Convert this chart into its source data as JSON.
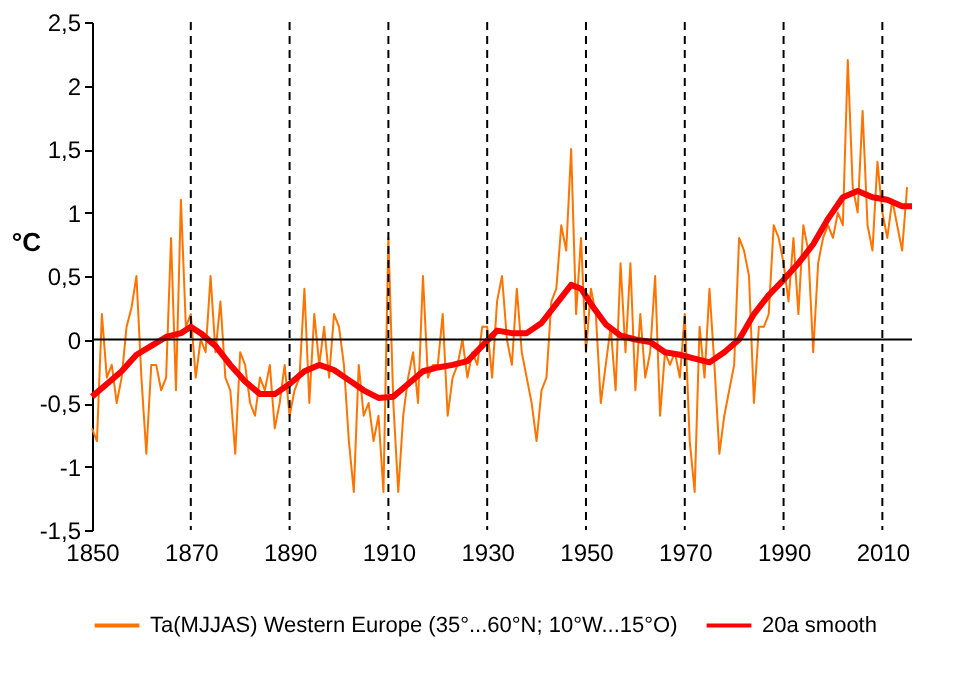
{
  "chart_data": {
    "type": "line",
    "ylabel": "°C",
    "xlim": [
      1850,
      2016
    ],
    "xticks": [
      1850,
      1870,
      1890,
      1910,
      1930,
      1950,
      1970,
      1990,
      2010
    ],
    "ylim": [
      -1.5,
      2.5
    ],
    "yticks": [
      {
        "value": -1.5,
        "label": "-1,5"
      },
      -1,
      {
        "value": -0.5,
        "label": "-0,5"
      },
      0,
      {
        "value": 0.5,
        "label": "0,5"
      },
      1,
      {
        "value": 1.5,
        "label": "1,5"
      },
      2,
      {
        "value": 2.5,
        "label": "2,5"
      }
    ],
    "grid": false,
    "legend": "bottom",
    "marker": "none",
    "series": [
      {
        "name": "Ta(MJJAS) Western Europe (35°...60°N; 10°W...15°O)",
        "color": "#ff7400",
        "x": [
          1850,
          1851,
          1852,
          1853,
          1854,
          1855,
          1856,
          1857,
          1858,
          1859,
          1860,
          1861,
          1862,
          1863,
          1864,
          1865,
          1866,
          1867,
          1868,
          1869,
          1870,
          1871,
          1872,
          1873,
          1874,
          1875,
          1876,
          1877,
          1878,
          1879,
          1880,
          1881,
          1882,
          1883,
          1884,
          1885,
          1886,
          1887,
          1888,
          1889,
          1890,
          1891,
          1892,
          1893,
          1894,
          1895,
          1896,
          1897,
          1898,
          1899,
          1900,
          1901,
          1902,
          1903,
          1904,
          1905,
          1906,
          1907,
          1908,
          1909,
          1910,
          1911,
          1912,
          1913,
          1914,
          1915,
          1916,
          1917,
          1918,
          1919,
          1920,
          1921,
          1922,
          1923,
          1924,
          1925,
          1926,
          1927,
          1928,
          1929,
          1930,
          1931,
          1932,
          1933,
          1934,
          1935,
          1936,
          1937,
          1938,
          1939,
          1940,
          1941,
          1942,
          1943,
          1944,
          1945,
          1946,
          1947,
          1948,
          1949,
          1950,
          1951,
          1952,
          1953,
          1954,
          1955,
          1956,
          1957,
          1958,
          1959,
          1960,
          1961,
          1962,
          1963,
          1964,
          1965,
          1966,
          1967,
          1968,
          1969,
          1970,
          1971,
          1972,
          1973,
          1974,
          1975,
          1976,
          1977,
          1978,
          1979,
          1980,
          1981,
          1982,
          1983,
          1984,
          1985,
          1986,
          1987,
          1988,
          1989,
          1990,
          1991,
          1992,
          1993,
          1994,
          1995,
          1996,
          1997,
          1998,
          1999,
          2000,
          2001,
          2002,
          2003,
          2004,
          2005,
          2006,
          2007,
          2008,
          2009,
          2010,
          2011,
          2012,
          2013,
          2014,
          2015
        ],
        "values": [
          -0.7,
          -0.8,
          0.2,
          -0.3,
          -0.2,
          -0.5,
          -0.3,
          0.1,
          0.25,
          0.5,
          -0.3,
          -0.9,
          -0.2,
          -0.2,
          -0.4,
          -0.3,
          0.8,
          -0.4,
          1.1,
          0.1,
          0.2,
          -0.3,
          0.0,
          -0.1,
          0.5,
          -0.1,
          0.3,
          -0.3,
          -0.4,
          -0.9,
          -0.1,
          -0.2,
          -0.5,
          -0.6,
          -0.3,
          -0.4,
          -0.2,
          -0.7,
          -0.5,
          -0.2,
          -0.6,
          -0.4,
          -0.3,
          0.4,
          -0.5,
          0.2,
          -0.2,
          0.1,
          -0.3,
          0.2,
          0.1,
          -0.2,
          -0.8,
          -1.2,
          -0.2,
          -0.6,
          -0.5,
          -0.8,
          -0.6,
          -1.2,
          0.8,
          -0.5,
          -1.2,
          -0.6,
          -0.3,
          -0.1,
          -0.5,
          0.5,
          -0.3,
          -0.2,
          -0.2,
          0.2,
          -0.6,
          -0.3,
          -0.2,
          0.0,
          -0.3,
          -0.1,
          -0.2,
          0.1,
          0.1,
          -0.3,
          0.3,
          0.5,
          0.0,
          -0.2,
          0.4,
          -0.1,
          -0.3,
          -0.5,
          -0.8,
          -0.4,
          -0.3,
          0.3,
          0.4,
          0.9,
          0.7,
          1.5,
          0.2,
          0.8,
          -0.1,
          0.4,
          0.2,
          -0.5,
          -0.2,
          0.1,
          -0.4,
          0.6,
          -0.1,
          0.6,
          -0.4,
          0.2,
          -0.3,
          -0.1,
          0.5,
          -0.6,
          -0.1,
          -0.2,
          -0.1,
          -0.3,
          0.2,
          -0.8,
          -1.2,
          0.1,
          -0.3,
          0.4,
          -0.2,
          -0.9,
          -0.6,
          -0.4,
          -0.2,
          0.8,
          0.7,
          0.5,
          -0.5,
          0.1,
          0.1,
          0.2,
          0.9,
          0.8,
          0.6,
          0.3,
          0.8,
          0.2,
          0.9,
          0.7,
          -0.1,
          0.6,
          0.8,
          0.9,
          0.8,
          1.0,
          0.9,
          2.2,
          1.2,
          1.0,
          1.8,
          0.9,
          0.7,
          1.4,
          1.0,
          0.8,
          1.1,
          0.9,
          0.7,
          1.2
        ]
      },
      {
        "name": "20a smooth",
        "color": "#ff0000",
        "x": [
          1850,
          1853,
          1856,
          1859,
          1862,
          1865,
          1868,
          1870,
          1872,
          1875,
          1878,
          1881,
          1884,
          1887,
          1890,
          1893,
          1896,
          1899,
          1902,
          1905,
          1908,
          1911,
          1914,
          1917,
          1920,
          1923,
          1926,
          1929,
          1932,
          1935,
          1938,
          1941,
          1944,
          1947,
          1949,
          1951,
          1954,
          1957,
          1960,
          1963,
          1966,
          1969,
          1972,
          1975,
          1978,
          1981,
          1984,
          1987,
          1990,
          1993,
          1996,
          1999,
          2002,
          2005,
          2008,
          2011,
          2014,
          2016
        ],
        "values": [
          -0.45,
          -0.35,
          -0.25,
          -0.12,
          -0.05,
          0.02,
          0.05,
          0.1,
          0.05,
          -0.05,
          -0.2,
          -0.33,
          -0.43,
          -0.43,
          -0.35,
          -0.25,
          -0.2,
          -0.24,
          -0.32,
          -0.4,
          -0.46,
          -0.45,
          -0.35,
          -0.25,
          -0.22,
          -0.2,
          -0.17,
          -0.05,
          0.07,
          0.05,
          0.05,
          0.13,
          0.28,
          0.43,
          0.4,
          0.28,
          0.12,
          0.03,
          0.0,
          -0.02,
          -0.1,
          -0.12,
          -0.15,
          -0.18,
          -0.1,
          0.0,
          0.2,
          0.35,
          0.47,
          0.6,
          0.75,
          0.95,
          1.12,
          1.17,
          1.12,
          1.1,
          1.05,
          1.05
        ]
      }
    ],
    "ref_lines": [
      {
        "axis": "y",
        "value": 0,
        "color": "#000000",
        "line_style": "solid"
      },
      {
        "axis": "x",
        "value": 1870,
        "color": "#000000",
        "line_style": "dashed"
      },
      {
        "axis": "x",
        "value": 1890,
        "color": "#000000",
        "line_style": "dashed"
      },
      {
        "axis": "x",
        "value": 1910,
        "color": "#000000",
        "line_style": "dashed"
      },
      {
        "axis": "x",
        "value": 1930,
        "color": "#000000",
        "line_style": "dashed"
      },
      {
        "axis": "x",
        "value": 1950,
        "color": "#000000",
        "line_style": "dashed"
      },
      {
        "axis": "x",
        "value": 1970,
        "color": "#000000",
        "line_style": "dashed"
      },
      {
        "axis": "x",
        "value": 1990,
        "color": "#000000",
        "line_style": "dashed"
      },
      {
        "axis": "x",
        "value": 2010,
        "color": "#000000",
        "line_style": "dashed"
      }
    ]
  }
}
